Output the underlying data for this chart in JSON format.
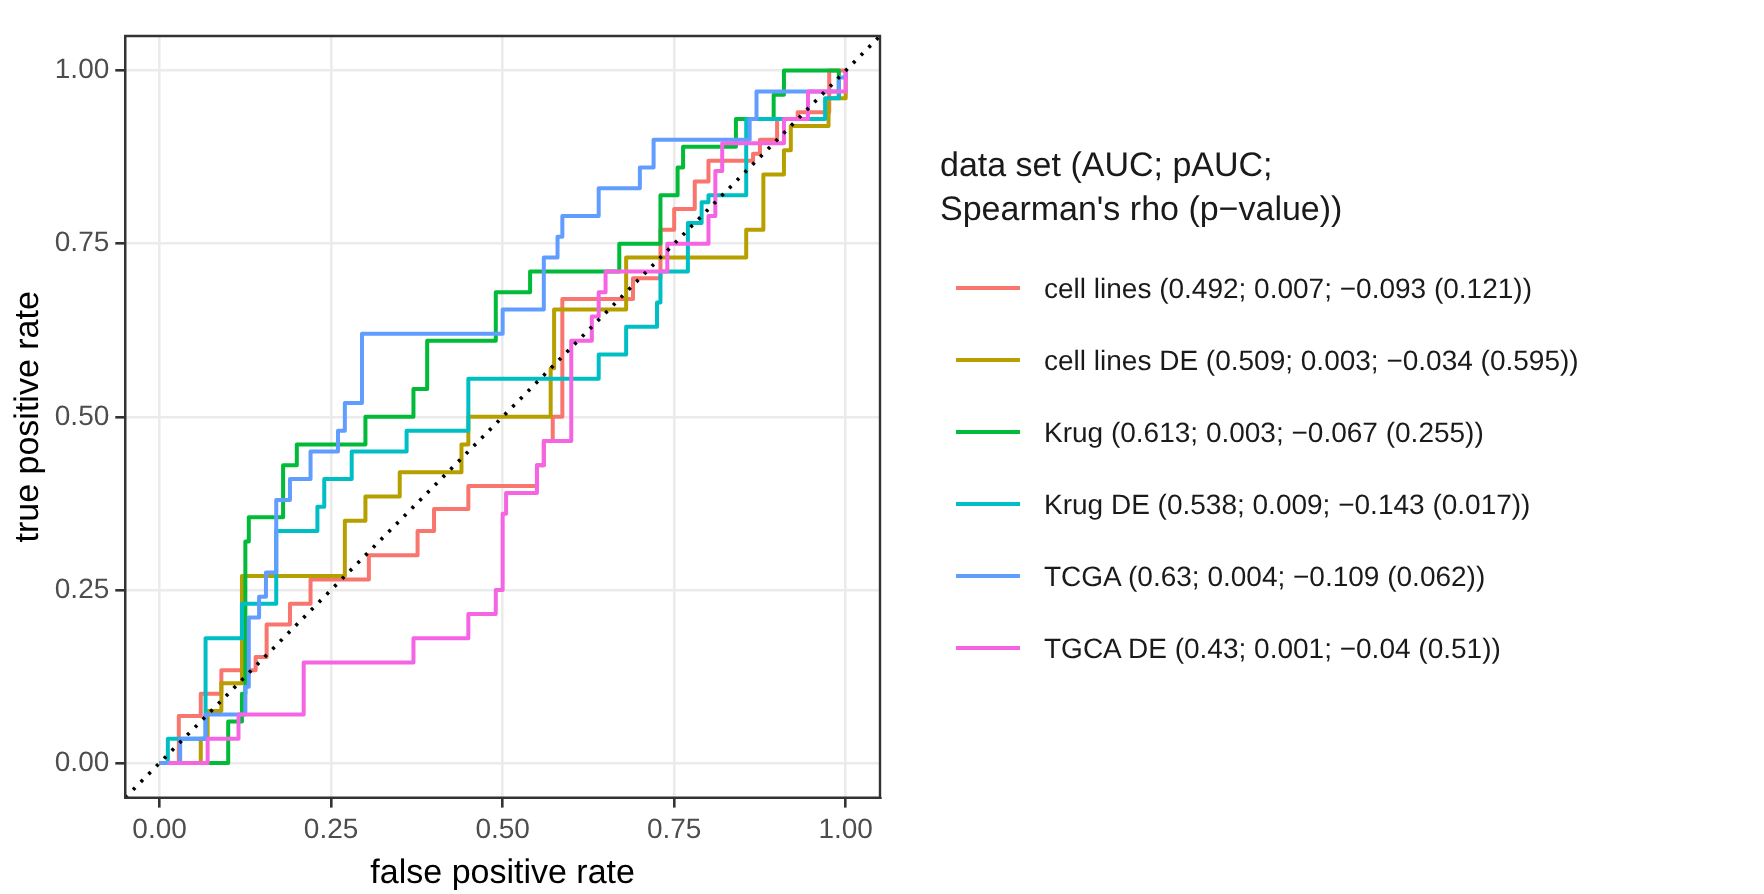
{
  "chart_data": {
    "type": "line",
    "xlabel": "false positive rate",
    "ylabel": "true positive rate",
    "legend_title": "data set (AUC; pAUC; Spearman's rho (p−value))",
    "legend": "right",
    "grid": true,
    "marker": "none",
    "xlim": [
      -0.05,
      1.05
    ],
    "ylim": [
      -0.05,
      1.05
    ],
    "xticks": [
      {
        "value": 0,
        "label": "0.00"
      },
      {
        "value": 0.25,
        "label": "0.25"
      },
      {
        "value": 0.5,
        "label": "0.50"
      },
      {
        "value": 0.75,
        "label": "0.75"
      },
      {
        "value": 1,
        "label": "1.00"
      }
    ],
    "yticks": [
      {
        "value": 0,
        "label": "0.00"
      },
      {
        "value": 0.25,
        "label": "0.25"
      },
      {
        "value": 0.5,
        "label": "0.50"
      },
      {
        "value": 0.75,
        "label": "0.75"
      },
      {
        "value": 1,
        "label": "1.00"
      }
    ],
    "series": [
      {
        "name": "cell lines (0.492; 0.007; −0.093 (0.121))",
        "color": "#f8766d",
        "x": [
          0,
          0.028,
          0.028,
          0.06,
          0.06,
          0.09,
          0.09,
          0.14,
          0.14,
          0.156,
          0.156,
          0.19,
          0.19,
          0.22,
          0.22,
          0.305,
          0.305,
          0.376,
          0.376,
          0.4,
          0.4,
          0.45,
          0.45,
          0.55,
          0.55,
          0.56,
          0.56,
          0.573,
          0.573,
          0.587,
          0.587,
          0.69,
          0.69,
          0.73,
          0.73,
          0.75,
          0.75,
          0.78,
          0.78,
          0.8,
          0.8,
          0.865,
          0.865,
          0.875,
          0.875,
          0.9,
          0.9,
          0.93,
          0.93,
          0.976,
          0.976,
          1
        ],
        "values": [
          0,
          0,
          0.068,
          0.068,
          0.1,
          0.1,
          0.134,
          0.134,
          0.153,
          0.153,
          0.2,
          0.2,
          0.23,
          0.23,
          0.265,
          0.265,
          0.3,
          0.3,
          0.335,
          0.335,
          0.367,
          0.367,
          0.4,
          0.4,
          0.43,
          0.43,
          0.465,
          0.465,
          0.5,
          0.5,
          0.67,
          0.67,
          0.7,
          0.7,
          0.77,
          0.77,
          0.8,
          0.8,
          0.84,
          0.84,
          0.87,
          0.87,
          0.88,
          0.88,
          0.9,
          0.9,
          0.93,
          0.93,
          0.94,
          0.94,
          1,
          1
        ]
      },
      {
        "name": "cell lines DE (0.509; 0.003; −0.034 (0.595))",
        "color": "#b79f00",
        "x": [
          0,
          0.06,
          0.06,
          0.07,
          0.07,
          0.09,
          0.09,
          0.12,
          0.12,
          0.27,
          0.27,
          0.3,
          0.3,
          0.35,
          0.35,
          0.44,
          0.44,
          0.45,
          0.45,
          0.57,
          0.57,
          0.575,
          0.575,
          0.68,
          0.68,
          0.855,
          0.855,
          0.88,
          0.88,
          0.91,
          0.91,
          0.92,
          0.92,
          0.975,
          0.975,
          1,
          1
        ],
        "values": [
          0,
          0,
          0.035,
          0.035,
          0.075,
          0.075,
          0.115,
          0.115,
          0.27,
          0.27,
          0.35,
          0.35,
          0.385,
          0.385,
          0.42,
          0.42,
          0.46,
          0.46,
          0.5,
          0.5,
          0.57,
          0.57,
          0.655,
          0.655,
          0.73,
          0.73,
          0.77,
          0.77,
          0.85,
          0.85,
          0.885,
          0.885,
          0.92,
          0.92,
          0.96,
          0.96,
          1
        ]
      },
      {
        "name": "Krug (0.613; 0.003; −0.067 (0.255))",
        "color": "#00ba38",
        "x": [
          0,
          0.1,
          0.1,
          0.12,
          0.12,
          0.125,
          0.125,
          0.13,
          0.13,
          0.18,
          0.18,
          0.2,
          0.2,
          0.3,
          0.3,
          0.37,
          0.37,
          0.39,
          0.39,
          0.49,
          0.49,
          0.54,
          0.54,
          0.67,
          0.67,
          0.73,
          0.73,
          0.755,
          0.755,
          0.763,
          0.763,
          0.84,
          0.84,
          0.895,
          0.895,
          0.91,
          0.91,
          0.99,
          0.99
        ],
        "values": [
          0,
          0,
          0.06,
          0.06,
          0.1,
          0.1,
          0.32,
          0.32,
          0.355,
          0.355,
          0.43,
          0.43,
          0.46,
          0.46,
          0.5,
          0.5,
          0.54,
          0.54,
          0.61,
          0.61,
          0.68,
          0.68,
          0.71,
          0.71,
          0.75,
          0.75,
          0.82,
          0.82,
          0.86,
          0.86,
          0.89,
          0.89,
          0.93,
          0.93,
          0.965,
          0.965,
          1,
          1,
          0.96
        ]
      },
      {
        "name": "Krug DE (0.538; 0.009; −0.143 (0.017))",
        "color": "#00bfc4",
        "x": [
          0,
          0.012,
          0.012,
          0.067,
          0.067,
          0.12,
          0.12,
          0.17,
          0.17,
          0.23,
          0.23,
          0.24,
          0.24,
          0.28,
          0.28,
          0.36,
          0.36,
          0.45,
          0.45,
          0.64,
          0.64,
          0.68,
          0.68,
          0.725,
          0.725,
          0.73,
          0.73,
          0.77,
          0.77,
          0.79,
          0.79,
          0.8,
          0.8,
          0.855,
          0.855,
          0.97,
          0.97,
          0.99,
          0.99
        ],
        "values": [
          0,
          0,
          0.035,
          0.035,
          0.18,
          0.18,
          0.23,
          0.23,
          0.335,
          0.335,
          0.37,
          0.37,
          0.41,
          0.41,
          0.45,
          0.45,
          0.48,
          0.48,
          0.555,
          0.555,
          0.59,
          0.59,
          0.63,
          0.63,
          0.665,
          0.665,
          0.71,
          0.71,
          0.78,
          0.78,
          0.81,
          0.81,
          0.82,
          0.82,
          0.93,
          0.93,
          0.96,
          0.96,
          0.99
        ]
      },
      {
        "name": "TCGA (0.63; 0.004; −0.109 (0.062))",
        "color": "#619cff",
        "x": [
          0,
          0.03,
          0.03,
          0.067,
          0.067,
          0.125,
          0.125,
          0.13,
          0.13,
          0.145,
          0.145,
          0.155,
          0.155,
          0.17,
          0.17,
          0.19,
          0.19,
          0.22,
          0.22,
          0.26,
          0.26,
          0.27,
          0.27,
          0.295,
          0.295,
          0.5,
          0.5,
          0.56,
          0.56,
          0.58,
          0.58,
          0.587,
          0.587,
          0.64,
          0.64,
          0.7,
          0.7,
          0.72,
          0.72,
          0.86,
          0.86,
          0.87,
          0.87,
          0.99,
          0.99,
          1,
          1
        ],
        "values": [
          0,
          0,
          0.035,
          0.035,
          0.07,
          0.07,
          0.11,
          0.11,
          0.21,
          0.21,
          0.24,
          0.24,
          0.275,
          0.275,
          0.38,
          0.38,
          0.41,
          0.41,
          0.45,
          0.45,
          0.48,
          0.48,
          0.52,
          0.52,
          0.62,
          0.62,
          0.655,
          0.655,
          0.73,
          0.73,
          0.76,
          0.76,
          0.79,
          0.79,
          0.83,
          0.83,
          0.86,
          0.86,
          0.9,
          0.9,
          0.93,
          0.93,
          0.97,
          0.97,
          0.99,
          0.99,
          1
        ]
      },
      {
        "name": "TGCA DE (0.43; 0.001; −0.04 (0.51))",
        "color": "#f564e3",
        "x": [
          0.012,
          0.07,
          0.07,
          0.115,
          0.115,
          0.21,
          0.21,
          0.37,
          0.37,
          0.45,
          0.45,
          0.49,
          0.49,
          0.5,
          0.5,
          0.505,
          0.505,
          0.55,
          0.55,
          0.56,
          0.56,
          0.6,
          0.6,
          0.63,
          0.63,
          0.64,
          0.64,
          0.65,
          0.65,
          0.74,
          0.74,
          0.8,
          0.8,
          0.81,
          0.81,
          0.82,
          0.82,
          0.91,
          0.91,
          0.945,
          0.945,
          1,
          1
        ],
        "values": [
          0,
          0,
          0.035,
          0.035,
          0.07,
          0.07,
          0.145,
          0.145,
          0.18,
          0.18,
          0.215,
          0.215,
          0.25,
          0.25,
          0.36,
          0.36,
          0.39,
          0.39,
          0.43,
          0.43,
          0.465,
          0.465,
          0.61,
          0.61,
          0.645,
          0.645,
          0.68,
          0.68,
          0.71,
          0.71,
          0.75,
          0.75,
          0.79,
          0.79,
          0.855,
          0.855,
          0.895,
          0.895,
          0.93,
          0.93,
          0.97,
          0.97,
          1
        ]
      },
      {
        "color": "#000000",
        "line_style": "dotted",
        "x": [
          -0.05,
          1.05
        ],
        "values": [
          -0.05,
          1.05
        ]
      }
    ]
  }
}
